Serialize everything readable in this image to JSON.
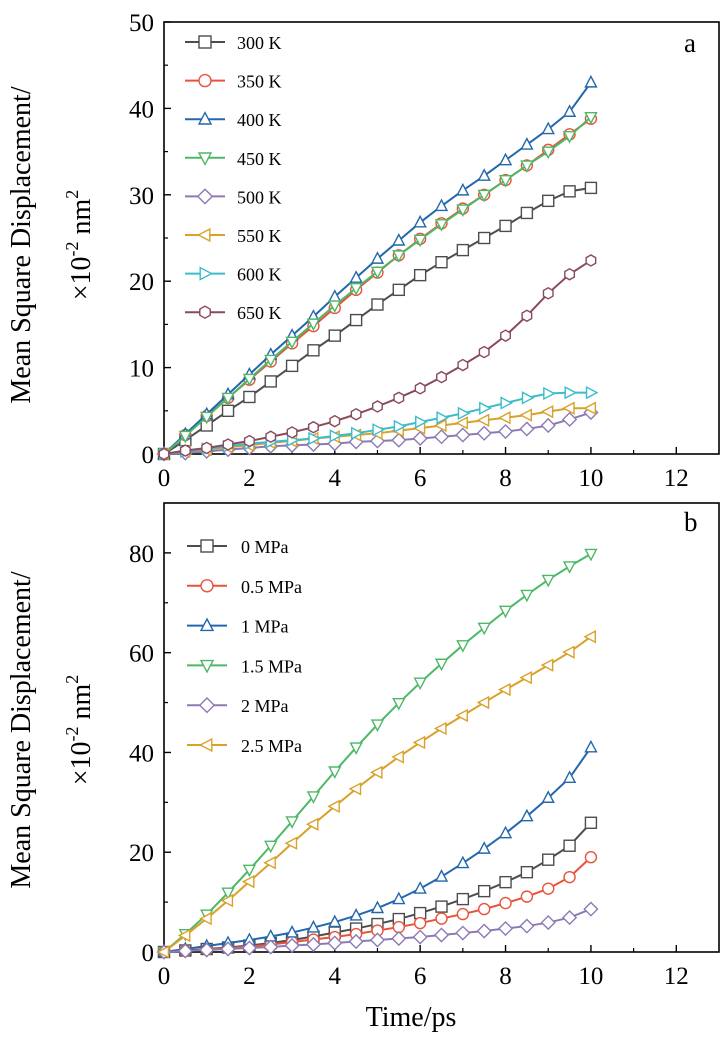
{
  "chart_data": [
    {
      "type": "line",
      "panel_label": "a",
      "ylabel_line1": "Mean Square Displacement/",
      "ylabel_line2_prefix": "×10",
      "ylabel_line2_exp": "-2",
      "ylabel_line2_unit": " nm",
      "ylabel_line2_unit_exp": "2",
      "xlabel": "",
      "xlim": [
        0,
        13
      ],
      "ylim": [
        0,
        50
      ],
      "xticks": [
        0,
        2,
        4,
        6,
        8,
        10,
        12
      ],
      "yticks": [
        0,
        10,
        20,
        30,
        40,
        50
      ],
      "legend_position": "top-left",
      "x": [
        0,
        0.5,
        1,
        1.5,
        2,
        2.5,
        3,
        3.5,
        4,
        4.5,
        5,
        5.5,
        6,
        6.5,
        7,
        7.5,
        8,
        8.5,
        9,
        9.5,
        10
      ],
      "series": [
        {
          "name": "300 K",
          "marker": "square",
          "color": "#4d4d4d",
          "values": [
            0,
            1.6,
            3.3,
            5.0,
            6.6,
            8.4,
            10.2,
            12.0,
            13.7,
            15.5,
            17.3,
            19.0,
            20.7,
            22.2,
            23.6,
            25.0,
            26.4,
            27.9,
            29.3,
            30.4,
            30.8
          ]
        },
        {
          "name": "350 K",
          "marker": "circle",
          "color": "#e8533c",
          "values": [
            0,
            2.2,
            4.4,
            6.5,
            8.6,
            10.7,
            12.8,
            14.8,
            16.9,
            19.0,
            21.0,
            23.0,
            24.9,
            26.7,
            28.4,
            30.0,
            31.7,
            33.4,
            35.2,
            37.0,
            38.8
          ]
        },
        {
          "name": "400 K",
          "marker": "triangle-up",
          "color": "#2367ac",
          "values": [
            0,
            2.3,
            4.6,
            6.9,
            9.2,
            11.5,
            13.7,
            15.9,
            18.2,
            20.4,
            22.6,
            24.7,
            26.8,
            28.7,
            30.5,
            32.2,
            34.0,
            35.8,
            37.6,
            39.6,
            43.0
          ]
        },
        {
          "name": "450 K",
          "marker": "triangle-down",
          "color": "#4db866",
          "values": [
            0,
            2.1,
            4.3,
            6.5,
            8.7,
            10.9,
            13.0,
            15.1,
            17.2,
            19.2,
            21.1,
            23.0,
            24.8,
            26.6,
            28.3,
            30.0,
            31.7,
            33.4,
            35.0,
            36.8,
            39.0
          ]
        },
        {
          "name": "500 K",
          "marker": "diamond",
          "color": "#8d7ab5",
          "values": [
            0,
            0.1,
            0.3,
            0.5,
            0.7,
            0.9,
            1.0,
            1.1,
            1.2,
            1.4,
            1.5,
            1.6,
            1.8,
            2.0,
            2.2,
            2.4,
            2.6,
            2.9,
            3.3,
            4.0,
            4.8
          ]
        },
        {
          "name": "550 K",
          "marker": "triangle-left",
          "color": "#d9a12a",
          "values": [
            0,
            0.3,
            0.5,
            0.8,
            1.0,
            1.3,
            1.5,
            1.8,
            2.0,
            2.2,
            2.4,
            2.7,
            3.0,
            3.3,
            3.6,
            3.9,
            4.2,
            4.5,
            4.9,
            5.3,
            5.3
          ]
        },
        {
          "name": "600 K",
          "marker": "triangle-right",
          "color": "#3bbcc9",
          "values": [
            0,
            0.3,
            0.6,
            0.9,
            1.2,
            1.4,
            1.6,
            1.8,
            2.1,
            2.4,
            2.8,
            3.2,
            3.7,
            4.2,
            4.7,
            5.3,
            5.9,
            6.5,
            7.0,
            7.1,
            7.1
          ]
        },
        {
          "name": "650 K",
          "marker": "hexagon",
          "color": "#8a4a5c",
          "values": [
            0,
            0.4,
            0.7,
            1.1,
            1.5,
            2.0,
            2.5,
            3.1,
            3.8,
            4.6,
            5.5,
            6.5,
            7.6,
            8.9,
            10.3,
            11.8,
            13.7,
            16.0,
            18.6,
            20.8,
            22.4
          ]
        }
      ]
    },
    {
      "type": "line",
      "panel_label": "b",
      "ylabel_line1": "Mean Square Displacement/",
      "ylabel_line2_prefix": "×10",
      "ylabel_line2_exp": "-2",
      "ylabel_line2_unit": " nm",
      "ylabel_line2_unit_exp": "2",
      "xlabel": "Time/ps",
      "xlim": [
        0,
        13
      ],
      "ylim": [
        0,
        90
      ],
      "xticks": [
        0,
        2,
        4,
        6,
        8,
        10,
        12
      ],
      "yticks": [
        0,
        20,
        40,
        60,
        80
      ],
      "legend_position": "top-left",
      "x": [
        0,
        0.5,
        1,
        1.5,
        2,
        2.5,
        3,
        3.5,
        4,
        4.5,
        5,
        5.5,
        6,
        6.5,
        7,
        7.5,
        8,
        8.5,
        9,
        9.5,
        10
      ],
      "series": [
        {
          "name": "0 MPa",
          "marker": "square",
          "color": "#4d4d4d",
          "values": [
            0,
            0.3,
            0.6,
            0.9,
            1.3,
            1.8,
            2.4,
            3.1,
            3.9,
            4.7,
            5.6,
            6.6,
            7.8,
            9.1,
            10.6,
            12.2,
            14.0,
            16.0,
            18.5,
            21.3,
            25.9
          ]
        },
        {
          "name": "0.5 MPa",
          "marker": "circle",
          "color": "#e8533c",
          "values": [
            0,
            0.2,
            0.5,
            0.8,
            1.1,
            1.5,
            2.0,
            2.5,
            3.0,
            3.6,
            4.3,
            5.0,
            5.8,
            6.7,
            7.6,
            8.6,
            9.8,
            11.1,
            12.7,
            15.0,
            19.0
          ]
        },
        {
          "name": "1 MPa",
          "marker": "triangle-up",
          "color": "#2367ac",
          "values": [
            0,
            0.6,
            1.2,
            1.8,
            2.4,
            3.1,
            3.9,
            4.9,
            6.0,
            7.3,
            8.8,
            10.6,
            12.7,
            15.1,
            17.8,
            20.7,
            23.8,
            27.2,
            30.9,
            34.9,
            41.0
          ]
        },
        {
          "name": "1.5 MPa",
          "marker": "triangle-down",
          "color": "#4db866",
          "values": [
            0,
            3.6,
            7.5,
            11.9,
            16.5,
            21.3,
            26.2,
            31.2,
            36.2,
            41.0,
            45.6,
            49.9,
            54.0,
            57.8,
            61.5,
            65.0,
            68.4,
            71.6,
            74.6,
            77.3,
            79.8
          ]
        },
        {
          "name": "2 MPa",
          "marker": "diamond",
          "color": "#8d7ab5",
          "values": [
            0,
            0.2,
            0.4,
            0.6,
            0.8,
            1.0,
            1.3,
            1.5,
            1.8,
            2.1,
            2.4,
            2.7,
            3.0,
            3.4,
            3.8,
            4.2,
            4.7,
            5.2,
            5.9,
            6.9,
            8.6
          ]
        },
        {
          "name": "2.5 MPa",
          "marker": "triangle-left",
          "color": "#d9a12a",
          "values": [
            0,
            3.3,
            6.7,
            10.3,
            14.1,
            17.9,
            21.8,
            25.6,
            29.2,
            32.7,
            36.0,
            39.1,
            42.0,
            44.8,
            47.4,
            50.0,
            52.6,
            55.0,
            57.5,
            60.1,
            63.2
          ]
        }
      ]
    }
  ]
}
